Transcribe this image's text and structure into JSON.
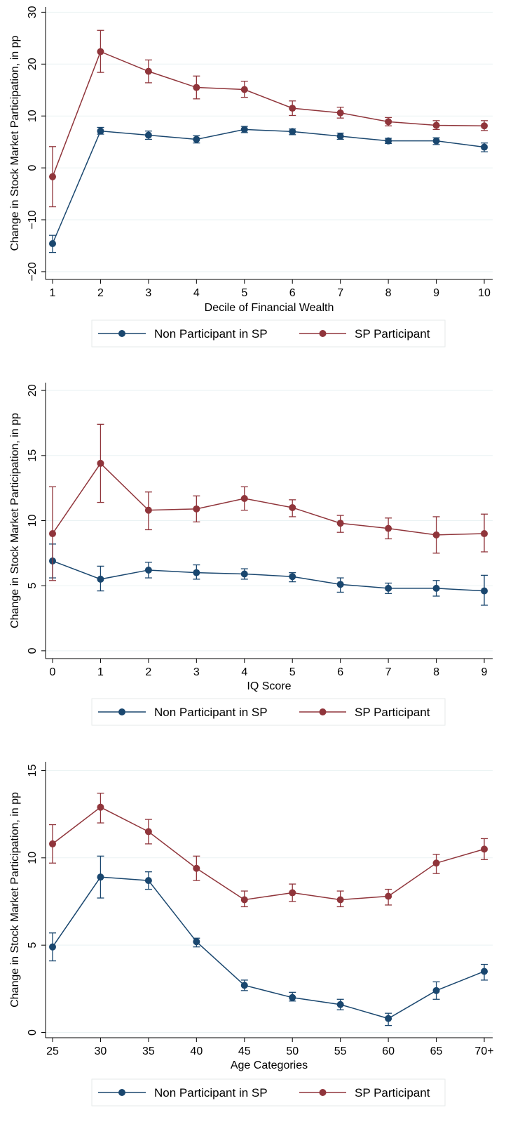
{
  "chart_data": [
    {
      "type": "line",
      "xlabel": "Decile of Financial Wealth",
      "ylabel": "Change in Stock Market Participation, in pp",
      "categories": [
        "1",
        "2",
        "3",
        "4",
        "5",
        "6",
        "7",
        "8",
        "9",
        "10"
      ],
      "ylim": [
        -20,
        30
      ],
      "yticks": [
        "−20",
        "−10",
        "0",
        "10",
        "20",
        "30"
      ],
      "ytick_values": [
        -20,
        -10,
        0,
        10,
        20,
        30
      ],
      "grid": true,
      "legend_position": "bottom",
      "series": [
        {
          "name": "Non Participant in SP",
          "color": "#1a476f",
          "values": [
            -14.6,
            7.1,
            6.3,
            5.5,
            7.4,
            7.0,
            6.1,
            5.2,
            5.2,
            4.0
          ],
          "ci_low": [
            -16.3,
            6.5,
            5.5,
            4.8,
            6.8,
            6.4,
            5.5,
            4.7,
            4.5,
            3.1
          ],
          "ci_high": [
            -13.0,
            7.8,
            7.1,
            6.2,
            8.0,
            7.5,
            6.7,
            5.7,
            5.8,
            4.8
          ]
        },
        {
          "name": "SP Participant",
          "color": "#90353b",
          "values": [
            -1.7,
            22.4,
            18.6,
            15.5,
            15.1,
            11.5,
            10.6,
            8.9,
            8.2,
            8.1
          ],
          "ci_low": [
            -7.5,
            18.4,
            16.4,
            13.3,
            13.6,
            10.1,
            9.6,
            8.1,
            7.4,
            7.2
          ],
          "ci_high": [
            4.1,
            26.5,
            20.8,
            17.7,
            16.7,
            12.9,
            11.7,
            9.7,
            9.1,
            9.1
          ]
        }
      ]
    },
    {
      "type": "line",
      "xlabel": "IQ Score",
      "ylabel": "Change in Stock Market Participation, in pp",
      "categories": [
        "0",
        "1",
        "2",
        "3",
        "4",
        "5",
        "6",
        "7",
        "8",
        "9"
      ],
      "ylim": [
        0,
        20
      ],
      "yticks": [
        "0",
        "5",
        "10",
        "15",
        "20"
      ],
      "ytick_values": [
        0,
        5,
        10,
        15,
        20
      ],
      "grid": true,
      "legend_position": "bottom",
      "series": [
        {
          "name": "Non Participant in SP",
          "color": "#1a476f",
          "values": [
            6.9,
            5.5,
            6.2,
            6.0,
            5.9,
            5.7,
            5.1,
            4.8,
            4.8,
            4.6
          ],
          "ci_low": [
            5.6,
            4.6,
            5.6,
            5.5,
            5.5,
            5.3,
            4.5,
            4.4,
            4.2,
            3.5
          ],
          "ci_high": [
            8.2,
            6.5,
            6.8,
            6.6,
            6.3,
            6.0,
            5.6,
            5.2,
            5.4,
            5.8
          ]
        },
        {
          "name": "SP Participant",
          "color": "#90353b",
          "values": [
            9.0,
            14.4,
            10.8,
            10.9,
            11.7,
            11.0,
            9.8,
            9.4,
            8.9,
            9.0
          ],
          "ci_low": [
            5.4,
            11.4,
            9.3,
            9.9,
            10.8,
            10.3,
            9.1,
            8.6,
            7.5,
            7.6
          ],
          "ci_high": [
            12.6,
            17.4,
            12.2,
            11.9,
            12.6,
            11.6,
            10.4,
            10.2,
            10.3,
            10.5
          ]
        }
      ]
    },
    {
      "type": "line",
      "xlabel": "Age Categories",
      "ylabel": "Change in Stock Market Participation, in pp",
      "categories": [
        "25",
        "30",
        "35",
        "40",
        "45",
        "50",
        "55",
        "60",
        "65",
        "70+"
      ],
      "ylim": [
        0,
        15
      ],
      "yticks": [
        "0",
        "5",
        "10",
        "15"
      ],
      "ytick_values": [
        0,
        5,
        10,
        15
      ],
      "grid": true,
      "legend_position": "bottom",
      "series": [
        {
          "name": "Non Participant in SP",
          "color": "#1a476f",
          "values": [
            4.9,
            8.9,
            8.7,
            5.2,
            2.7,
            2.0,
            1.6,
            0.8,
            2.4,
            3.5
          ],
          "ci_low": [
            4.1,
            7.7,
            8.2,
            4.9,
            2.4,
            1.8,
            1.3,
            0.4,
            1.9,
            3.0
          ],
          "ci_high": [
            5.7,
            10.1,
            9.2,
            5.4,
            3.0,
            2.3,
            1.9,
            1.1,
            2.9,
            3.9
          ]
        },
        {
          "name": "SP Participant",
          "color": "#90353b",
          "values": [
            10.8,
            12.9,
            11.5,
            9.4,
            7.6,
            8.0,
            7.6,
            7.8,
            9.7,
            10.5
          ],
          "ci_low": [
            9.7,
            12.0,
            10.8,
            8.7,
            7.2,
            7.5,
            7.2,
            7.3,
            9.1,
            9.9
          ],
          "ci_high": [
            11.9,
            13.7,
            12.2,
            10.1,
            8.1,
            8.5,
            8.1,
            8.2,
            10.2,
            11.1
          ]
        }
      ]
    }
  ]
}
